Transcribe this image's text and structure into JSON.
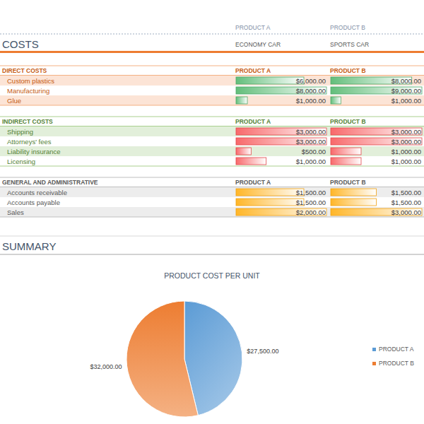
{
  "header": {
    "columns": [
      "PRODUCT A",
      "PRODUCT B"
    ],
    "title": "COSTS",
    "subtitles": [
      "ECONOMY CAR",
      "SPORTS CAR"
    ]
  },
  "sections": [
    {
      "title": "DIRECT COSTS",
      "columns": [
        "PRODUCT A",
        "PRODUCT B"
      ],
      "rows": [
        {
          "label": "Custom plastics",
          "cells": [
            {
              "value": 6000,
              "label": "$6,000.00"
            },
            {
              "value": 8000,
              "label": "$8,000.00"
            }
          ]
        },
        {
          "label": "Manufacturing",
          "cells": [
            {
              "value": 8000,
              "label": "$8,000.00"
            },
            {
              "value": 9000,
              "label": "$9,000.00"
            }
          ]
        },
        {
          "label": "Glue",
          "cells": [
            {
              "value": 1000,
              "label": "$1,000.00"
            },
            {
              "value": 1000,
              "label": "$1,000.00"
            }
          ]
        }
      ]
    },
    {
      "title": "INDIRECT COSTS",
      "columns": [
        "PRODUCT A",
        "PRODUCT B"
      ],
      "rows": [
        {
          "label": "Shipping",
          "cells": [
            {
              "value": 3000,
              "label": "$3,000.00"
            },
            {
              "value": 3000,
              "label": "$3,000.00"
            }
          ]
        },
        {
          "label": "Attorneys' fees",
          "cells": [
            {
              "value": 3000,
              "label": "$3,000.00"
            },
            {
              "value": 3000,
              "label": "$3,000.00"
            }
          ]
        },
        {
          "label": "Liability insurance",
          "cells": [
            {
              "value": 500,
              "label": "$500.00"
            },
            {
              "value": 1000,
              "label": "$1,000.00"
            }
          ]
        },
        {
          "label": "Licensing",
          "cells": [
            {
              "value": 1000,
              "label": "$1,000.00"
            },
            {
              "value": 1000,
              "label": "$1,000.00"
            }
          ]
        }
      ]
    },
    {
      "title": "GENERAL AND ADMINISTRATIVE",
      "columns": [
        "PRODUCT A",
        "PRODUCT B"
      ],
      "rows": [
        {
          "label": "Accounts receivable",
          "cells": [
            {
              "value": 1500,
              "label": "$1,500.00"
            },
            {
              "value": 1500,
              "label": "$1,500.00"
            }
          ]
        },
        {
          "label": "Accounts payable",
          "cells": [
            {
              "value": 1500,
              "label": "$1,500.00"
            },
            {
              "value": 1500,
              "label": "$1,500.00"
            }
          ]
        },
        {
          "label": "Sales",
          "cells": [
            {
              "value": 2000,
              "label": "$2,000.00"
            },
            {
              "value": 3000,
              "label": "$3,000.00"
            }
          ]
        }
      ]
    }
  ],
  "summary_title": "SUMMARY",
  "chart_data": {
    "type": "pie",
    "title": "PRODUCT COST PER UNIT",
    "categories": [
      "PRODUCT A",
      "PRODUCT B"
    ],
    "values": [
      27500,
      32000
    ],
    "value_labels": [
      "$27,500.00",
      "$32,000.00"
    ],
    "colors": [
      "#5b9bd5",
      "#ed7d31"
    ],
    "data_labels": true,
    "legend": "right"
  }
}
